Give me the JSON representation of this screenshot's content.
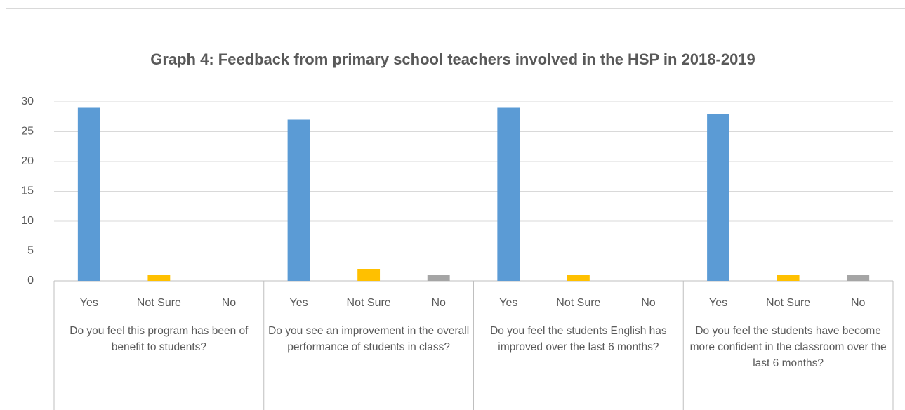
{
  "chart_data": {
    "type": "bar",
    "title": "Graph 4: Feedback from primary school teachers involved in the HSP in 2018-2019",
    "groups": [
      {
        "label": "Do you feel this program has been of benefit to students?",
        "categories": [
          "Yes",
          "Not Sure",
          "No"
        ],
        "values": [
          29,
          1,
          0
        ]
      },
      {
        "label": "Do you see an improvement in the overall performance of students in class?",
        "categories": [
          "Yes",
          "Not Sure",
          "No"
        ],
        "values": [
          27,
          2,
          1
        ]
      },
      {
        "label": "Do you feel the students English has improved over the last 6 months?",
        "categories": [
          "Yes",
          "Not Sure",
          "No"
        ],
        "values": [
          29,
          1,
          0
        ]
      },
      {
        "label": "Do you feel the students have become more confident in the classroom over the last 6 months?",
        "categories": [
          "Yes",
          "Not Sure",
          "No"
        ],
        "values": [
          28,
          1,
          1
        ]
      }
    ],
    "colors": [
      "#5b9bd5",
      "#ffc000",
      "#a5a5a5"
    ],
    "ylim": [
      0,
      30
    ],
    "yticks": [
      0,
      5,
      10,
      15,
      20,
      25,
      30
    ],
    "grid": true
  }
}
